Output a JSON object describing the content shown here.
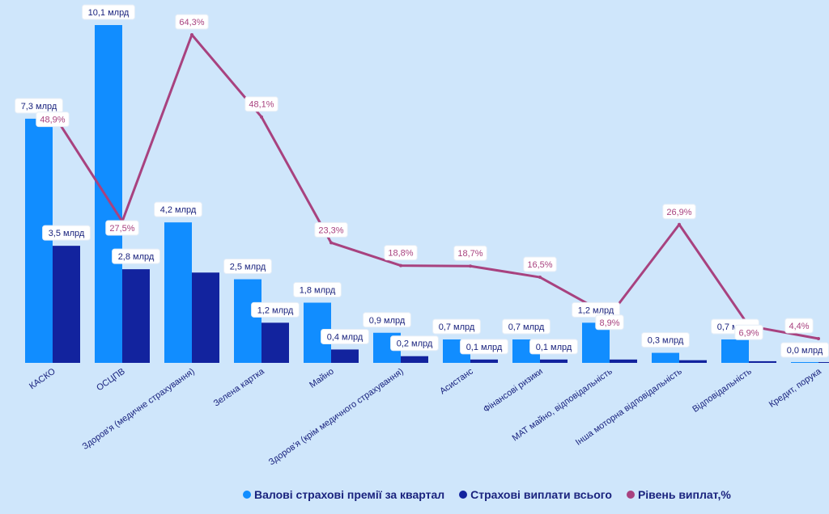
{
  "chart_data": {
    "type": "bar",
    "categories": [
      "КАСКО",
      "ОСЦПВ",
      "Здоров'я (медичне страхування)",
      "Зелена картка",
      "Майно",
      "Здоров'я (крім медичного страхування)",
      "Асистанс",
      "Фінансові ризики",
      "МАТ майно, відповідальність",
      "Інша моторна відповідальність",
      "Відповідальність",
      "Кредит, порука"
    ],
    "series": [
      {
        "name": "Валові страхові премії за квартал",
        "kind": "bar",
        "color": "#118dff",
        "values": [
          7.3,
          10.1,
          4.2,
          2.5,
          1.8,
          0.9,
          0.7,
          0.7,
          1.2,
          0.3,
          0.7,
          0.0
        ],
        "labels": [
          "7,3 млрд",
          "10,1 млрд",
          "4,2 млрд",
          "2,5 млрд",
          "1,8 млрд",
          "0,9 млрд",
          "0,7 млрд",
          "0,7 млрд",
          "1,2 млрд",
          "0,3 млрд",
          "0,7 млрд",
          "0,0 млрд"
        ]
      },
      {
        "name": "Страхові виплати всього",
        "kind": "bar",
        "color": "#12239e",
        "values": [
          3.5,
          2.8,
          2.7,
          1.2,
          0.4,
          0.2,
          0.1,
          0.1,
          0.1,
          0.08,
          0.05,
          0.0
        ],
        "labels": [
          "3,5 млрд",
          "2,8 млрд",
          "",
          "1,2 млрд",
          "0,4 млрд",
          "0,2 млрд",
          "0,1 млрд",
          "0,1 млрд",
          "",
          "",
          "",
          ""
        ]
      },
      {
        "name": "Рівень виплат,%",
        "kind": "line",
        "color": "#a8427f",
        "values": [
          48.9,
          27.5,
          64.3,
          48.1,
          23.3,
          18.8,
          18.7,
          16.5,
          8.9,
          26.9,
          6.9,
          4.4
        ],
        "labels": [
          "48,9%",
          "27,5%",
          "64,3%",
          "48,1%",
          "23,3%",
          "18,8%",
          "18,7%",
          "16,5%",
          "8,9%",
          "26,9%",
          "6,9%",
          "4,4%"
        ]
      }
    ],
    "ylim_bars": [
      0,
      10.1
    ],
    "ylim_line": [
      0,
      64.3
    ],
    "legend_position": "bottom"
  }
}
